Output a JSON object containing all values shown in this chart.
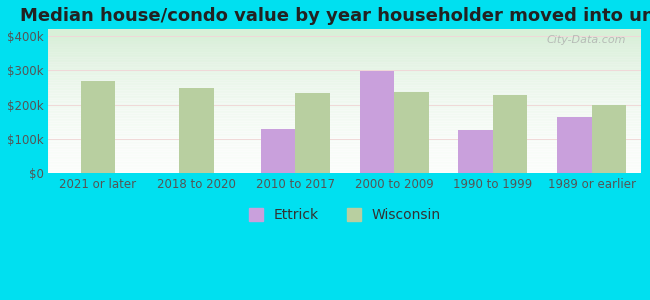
{
  "title": "Median house/condo value by year householder moved into unit",
  "categories": [
    "2021 or later",
    "2018 to 2020",
    "2010 to 2017",
    "2000 to 2009",
    "1990 to 1999",
    "1989 or earlier"
  ],
  "ettrick": [
    null,
    null,
    130000,
    298000,
    126000,
    165000
  ],
  "wisconsin": [
    268000,
    248000,
    235000,
    238000,
    228000,
    198000
  ],
  "ettrick_color": "#c9a0dc",
  "wisconsin_color": "#b8cfa0",
  "background_outer": "#00e0f0",
  "yticks": [
    0,
    100000,
    200000,
    300000,
    400000
  ],
  "ytick_labels": [
    "$0",
    "$100k",
    "$200k",
    "$300k",
    "$400k"
  ],
  "ylim": [
    0,
    420000
  ],
  "bar_width": 0.35,
  "title_fontsize": 13,
  "tick_fontsize": 8.5,
  "legend_fontsize": 10,
  "watermark": "City-Data.com"
}
